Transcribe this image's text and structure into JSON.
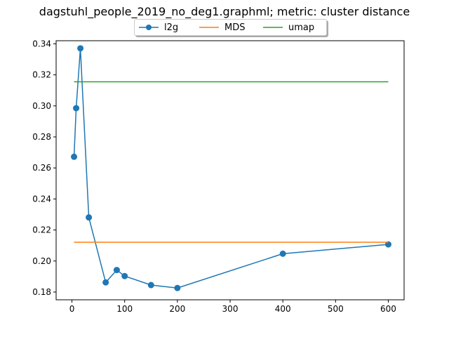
{
  "chart_data": {
    "type": "line",
    "title": "dagstuhl_people_2019_no_deg1.graphml; metric: cluster distance",
    "xlabel": "",
    "ylabel": "",
    "xlim": [
      -30,
      630
    ],
    "ylim": [
      0.175,
      0.342
    ],
    "xticks": [
      0,
      100,
      200,
      300,
      400,
      500,
      600
    ],
    "yticks": [
      0.18,
      0.2,
      0.22,
      0.24,
      0.26,
      0.28,
      0.3,
      0.32,
      0.34
    ],
    "legend_position": "top-center",
    "grid": false,
    "series": [
      {
        "name": "l2g",
        "color": "#1f77b4",
        "marker": "circle",
        "x": [
          4,
          8,
          16,
          32,
          64,
          85,
          100,
          150,
          200,
          400,
          600
        ],
        "y": [
          0.2672,
          0.2985,
          0.3371,
          0.2281,
          0.1862,
          0.1942,
          0.1903,
          0.1845,
          0.1826,
          0.2047,
          0.2107
        ]
      },
      {
        "name": "MDS",
        "color": "#ff7f0e",
        "marker": "none",
        "x": [
          4,
          600
        ],
        "y": [
          0.2121,
          0.2121
        ]
      },
      {
        "name": "umap",
        "color": "#2ca02c",
        "marker": "none",
        "x": [
          4,
          600
        ],
        "y": [
          0.3155,
          0.3155
        ]
      }
    ]
  }
}
